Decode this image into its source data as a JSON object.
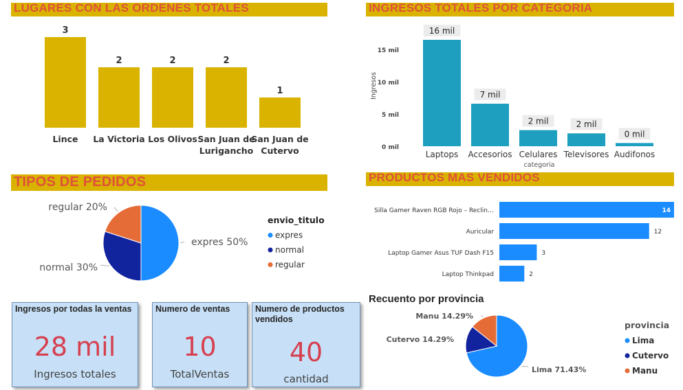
{
  "colors": {
    "gold": "#d9b300",
    "title_red": "#e0503a",
    "teal": "#1f9fbf",
    "blue": "#1a8cff",
    "dark_blue": "#12239e",
    "orange": "#e66c37",
    "kpi_red": "#d6404f",
    "card_bg": "#c7e0f7"
  },
  "lugares": {
    "title": "LUGARES CON LAS ORDENES TOTALES",
    "chart_data": {
      "type": "bar",
      "categories": [
        [
          "Lince"
        ],
        [
          "La Victoria"
        ],
        [
          "Los Olivos"
        ],
        [
          "San Juan de",
          "Lurigancho"
        ],
        [
          "San Juan de",
          "Cutervo"
        ]
      ],
      "values": [
        3,
        2,
        2,
        2,
        1
      ],
      "value_labels": [
        "3",
        "2",
        "2",
        "2",
        "1"
      ],
      "ylim": [
        0,
        3
      ]
    }
  },
  "ingresos": {
    "title": "INGRESOS TOTALES POR CATEGORIA",
    "chart_data": {
      "type": "bar",
      "categories": [
        "Laptops",
        "Accesorios",
        "Celulares",
        "Televisores",
        "Audifonos"
      ],
      "values": [
        16.5,
        6.6,
        2.5,
        2.0,
        0.5
      ],
      "value_labels": [
        "16 mil",
        "7 mil",
        "2 mil",
        "2 mil",
        "0 mil"
      ],
      "yticks": [
        0,
        5,
        10,
        15
      ],
      "ytick_labels": [
        "0 mil",
        "5 mil",
        "10 mil",
        "15 mil"
      ],
      "ylim": [
        0,
        16.5
      ],
      "xlabel": "categoria",
      "ylabel": "Ingresos"
    }
  },
  "tipos": {
    "title": "TIPOS DE PEDIDOS",
    "chart_data": {
      "type": "pie",
      "labels": [
        "expres",
        "normal",
        "regular"
      ],
      "values": [
        50,
        30,
        20
      ],
      "slice_labels": [
        "expres 50%",
        "normal 30%",
        "regular 20%"
      ],
      "colors": [
        "#1a8cff",
        "#12239e",
        "#e66c37"
      ],
      "legend_title": "envio_titulo",
      "legend_position": "right"
    }
  },
  "productos": {
    "title": "PRODUCTOS MAS VENDIDOS",
    "chart_data": {
      "type": "bar",
      "orientation": "horizontal",
      "categories": [
        "Silla Gamer Raven RGB Rojo – Reclin…",
        "Auricular",
        "Laptop Gamer Asus TUF Dash F15",
        "Laptop Thinkpad"
      ],
      "values": [
        14,
        12,
        3,
        2
      ],
      "value_labels": [
        "14",
        "12",
        "3",
        "2"
      ],
      "xlim": [
        0,
        14
      ]
    }
  },
  "provincia": {
    "title": "Recuento por provincia",
    "chart_data": {
      "type": "pie",
      "labels": [
        "Lima",
        "Cutervo",
        "Manu"
      ],
      "values": [
        71.43,
        14.29,
        14.29
      ],
      "slice_labels": [
        "Lima 71.43%",
        "Cutervo 14.29%",
        "Manu 14.29%"
      ],
      "colors": [
        "#1a8cff",
        "#12239e",
        "#e66c37"
      ],
      "legend_title": "provincia",
      "legend_position": "right"
    }
  },
  "kpis": [
    {
      "title": "Ingresos por todas la ventas",
      "value": "28 mil",
      "sub": "Ingresos totales"
    },
    {
      "title": "Numero de ventas",
      "value": "10",
      "sub": "TotalVentas"
    },
    {
      "title": "Numero de productos vendidos",
      "value": "40",
      "sub": "cantidad"
    }
  ]
}
